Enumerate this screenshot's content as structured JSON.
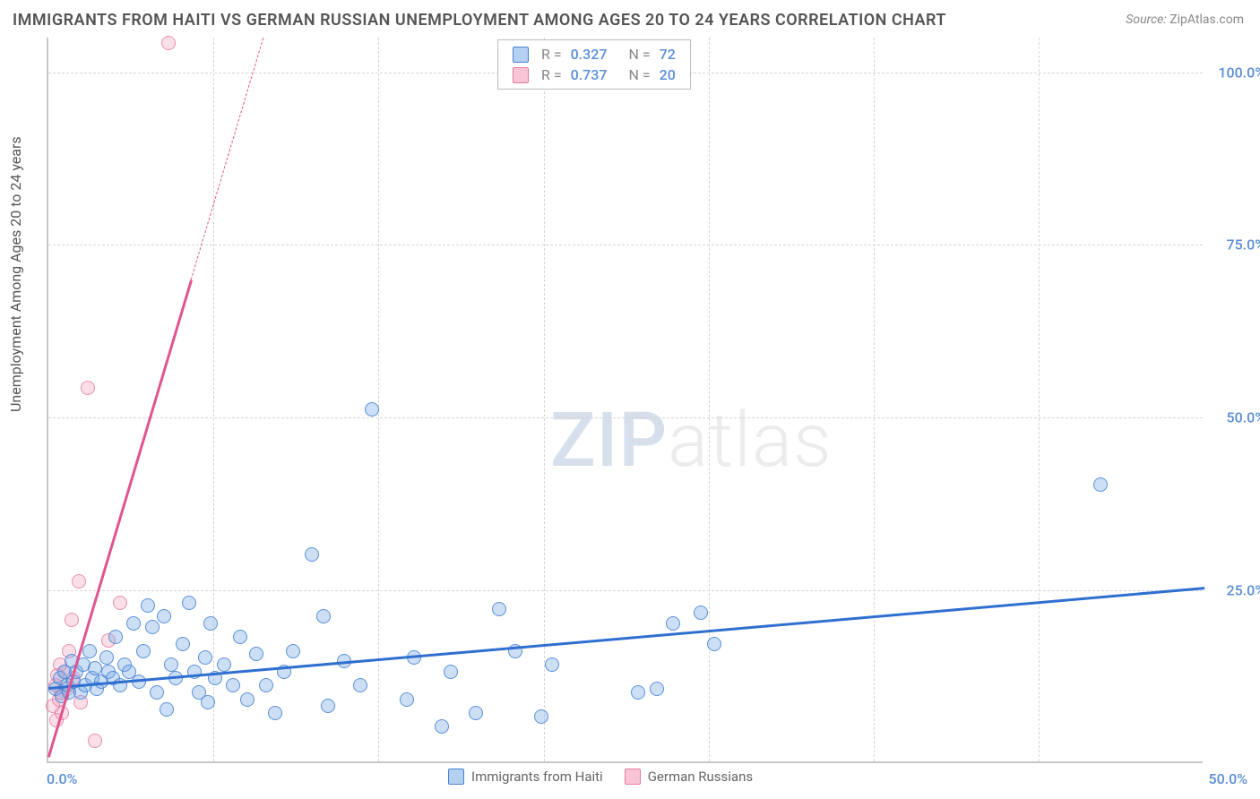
{
  "title": "IMMIGRANTS FROM HAITI VS GERMAN RUSSIAN UNEMPLOYMENT AMONG AGES 20 TO 24 YEARS CORRELATION CHART",
  "source_label": "Source:",
  "source_name": "ZipAtlas.com",
  "ylabel": "Unemployment Among Ages 20 to 24 years",
  "watermark": {
    "zip": "ZIP",
    "atlas": "atlas"
  },
  "colors": {
    "blue_fill": "rgba(120,170,230,0.38)",
    "blue_stroke": "#4682d2",
    "blue_line": "#2f6fd0",
    "pink_fill": "rgba(240,150,180,0.30)",
    "pink_stroke": "#e678a0",
    "pink_line": "#e05590",
    "grid": "#d5d5d5",
    "axis": "#c8c8c8",
    "tick_text": "#5a8fd6",
    "title_text": "#555",
    "source_text": "#888"
  },
  "axes": {
    "x_min": 0,
    "x_max": 50,
    "y_min": 0,
    "y_max": 105,
    "x_ticks": [
      0,
      50
    ],
    "x_tick_labels": [
      "0.0%",
      "50.0%"
    ],
    "y_ticks": [
      25,
      50,
      75,
      100
    ],
    "y_tick_labels": [
      "25.0%",
      "50.0%",
      "75.0%",
      "100.0%"
    ],
    "x_grid": [
      7.14,
      14.28,
      21.42,
      28.56,
      35.7,
      42.84
    ]
  },
  "legend_top": [
    {
      "swatch_fill": "rgba(120,170,230,0.55)",
      "swatch_border": "#4682d2",
      "r": "0.327",
      "n": "72"
    },
    {
      "swatch_fill": "rgba(240,150,180,0.55)",
      "swatch_border": "#e678a0",
      "r": "0.737",
      "n": "20"
    }
  ],
  "legend_labels": {
    "r": "R =",
    "n": "N ="
  },
  "legend_bottom": [
    {
      "swatch_fill": "rgba(120,170,230,0.55)",
      "swatch_border": "#4682d2",
      "label": "Immigrants from Haiti"
    },
    {
      "swatch_fill": "rgba(240,150,180,0.55)",
      "swatch_border": "#e678a0",
      "label": "German Russians"
    }
  ],
  "series_blue": {
    "trend": {
      "x1": 0,
      "y1": 11.0,
      "x2": 50,
      "y2": 25.5
    },
    "points": [
      [
        0.3,
        10.5
      ],
      [
        0.5,
        12.0
      ],
      [
        0.6,
        9.5
      ],
      [
        0.7,
        13.0
      ],
      [
        0.8,
        11.0
      ],
      [
        0.9,
        10.0
      ],
      [
        1.0,
        14.5
      ],
      [
        1.1,
        11.5
      ],
      [
        1.2,
        13.0
      ],
      [
        1.4,
        10.0
      ],
      [
        1.5,
        14.0
      ],
      [
        1.6,
        11.0
      ],
      [
        1.8,
        16.0
      ],
      [
        1.9,
        12.0
      ],
      [
        2.0,
        13.5
      ],
      [
        2.1,
        10.5
      ],
      [
        2.3,
        11.5
      ],
      [
        2.5,
        15.0
      ],
      [
        2.6,
        13.0
      ],
      [
        2.8,
        12.0
      ],
      [
        2.9,
        18.0
      ],
      [
        3.1,
        11.0
      ],
      [
        3.3,
        14.0
      ],
      [
        3.5,
        13.0
      ],
      [
        3.7,
        20.0
      ],
      [
        3.9,
        11.5
      ],
      [
        4.1,
        16.0
      ],
      [
        4.5,
        19.5
      ],
      [
        4.7,
        10.0
      ],
      [
        5.0,
        21.0
      ],
      [
        5.1,
        7.5
      ],
      [
        5.3,
        14.0
      ],
      [
        5.5,
        12.0
      ],
      [
        5.8,
        17.0
      ],
      [
        6.1,
        23.0
      ],
      [
        6.3,
        13.0
      ],
      [
        6.5,
        10.0
      ],
      [
        6.8,
        15.0
      ],
      [
        7.0,
        20.0
      ],
      [
        7.2,
        12.0
      ],
      [
        7.6,
        14.0
      ],
      [
        8.0,
        11.0
      ],
      [
        8.3,
        18.0
      ],
      [
        8.6,
        9.0
      ],
      [
        9.0,
        15.5
      ],
      [
        9.4,
        11.0
      ],
      [
        9.8,
        7.0
      ],
      [
        10.2,
        13.0
      ],
      [
        10.6,
        16.0
      ],
      [
        11.4,
        30.0
      ],
      [
        12.1,
        8.0
      ],
      [
        12.8,
        14.5
      ],
      [
        13.5,
        11.0
      ],
      [
        14.0,
        51.0
      ],
      [
        15.5,
        9.0
      ],
      [
        15.8,
        15.0
      ],
      [
        17.0,
        5.0
      ],
      [
        17.4,
        13.0
      ],
      [
        18.5,
        7.0
      ],
      [
        19.5,
        22.0
      ],
      [
        20.2,
        16.0
      ],
      [
        21.3,
        6.5
      ],
      [
        21.8,
        14.0
      ],
      [
        25.5,
        10.0
      ],
      [
        26.3,
        10.5
      ],
      [
        27.0,
        20.0
      ],
      [
        28.2,
        21.5
      ],
      [
        28.8,
        17.0
      ],
      [
        45.5,
        40.0
      ],
      [
        4.3,
        22.5
      ],
      [
        6.9,
        8.5
      ],
      [
        11.9,
        21.0
      ]
    ]
  },
  "series_pink": {
    "trend": {
      "x1": 0,
      "y1": 1.0,
      "x2": 9.3,
      "y2": 105.0
    },
    "points": [
      [
        0.2,
        8.0
      ],
      [
        0.3,
        11.0
      ],
      [
        0.35,
        6.0
      ],
      [
        0.4,
        12.5
      ],
      [
        0.45,
        9.0
      ],
      [
        0.5,
        14.0
      ],
      [
        0.55,
        10.0
      ],
      [
        0.6,
        7.0
      ],
      [
        0.7,
        13.0
      ],
      [
        0.8,
        10.5
      ],
      [
        0.9,
        16.0
      ],
      [
        1.0,
        20.5
      ],
      [
        1.1,
        12.0
      ],
      [
        1.3,
        26.0
      ],
      [
        1.4,
        8.5
      ],
      [
        1.7,
        54.0
      ],
      [
        2.0,
        3.0
      ],
      [
        2.6,
        17.5
      ],
      [
        3.1,
        23.0
      ],
      [
        5.2,
        104.0
      ]
    ]
  }
}
